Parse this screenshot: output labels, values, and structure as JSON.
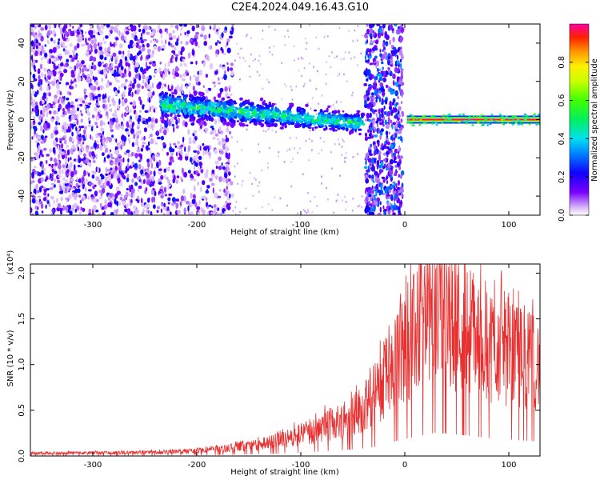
{
  "title": "C2E4.2024.049.16.43.G10",
  "chart_data": [
    {
      "type": "heatmap",
      "xlabel": "Height of straight line (km)",
      "ylabel": "Frequency (Hz)",
      "xlim": [
        -360,
        130
      ],
      "ylim": [
        -50,
        50
      ],
      "xticks": [
        -300,
        -200,
        -100,
        0,
        100
      ],
      "xtick_labels": [
        "-300",
        "-200",
        "-100",
        "0",
        "100"
      ],
      "yticks": [
        -40,
        -20,
        0,
        20,
        40
      ],
      "ytick_labels": [
        "-40",
        "-20",
        "0",
        "20",
        "40"
      ],
      "colorbar": {
        "label": "Normalized spectral amplitude",
        "range": [
          0,
          1
        ],
        "ticks": [
          0.0,
          0.2,
          0.4,
          0.6,
          0.8
        ],
        "tick_labels": [
          "0.0",
          "0.2",
          "0.4",
          "0.6",
          "0.8"
        ],
        "colormap": "rainbow"
      },
      "features": [
        {
          "name": "diffuse-noise",
          "x_range": [
            -360,
            -165
          ],
          "amplitude": 0.2
        },
        {
          "name": "drifting-band",
          "x_range": [
            -235,
            -40
          ],
          "freq_start": 8,
          "freq_end": -2,
          "amplitude": 0.45
        },
        {
          "name": "noise-column",
          "x_range": [
            -38,
            -2
          ],
          "amplitude": 0.3
        },
        {
          "name": "carrier-line",
          "x_range": [
            2,
            130
          ],
          "freq": 0,
          "amplitude": 1.0
        }
      ],
      "grid": false
    },
    {
      "type": "line",
      "xlabel": "Height of straight line (km)",
      "ylabel": "SNR (10 * v/v)",
      "y_multiplier": "(x10⁴)",
      "xlim": [
        -360,
        130
      ],
      "ylim": [
        0,
        21000
      ],
      "xticks": [
        -300,
        -200,
        -100,
        0,
        100
      ],
      "xtick_labels": [
        "-300",
        "-200",
        "-100",
        "0",
        "100"
      ],
      "yticks": [
        0,
        5000,
        10000,
        15000,
        20000
      ],
      "ytick_labels": [
        "0.0",
        "0.5",
        "1.0",
        "1.5",
        "2.0"
      ],
      "series": [
        {
          "color": "#e83030",
          "x": [
            -360,
            -300,
            -250,
            -220,
            -200,
            -180,
            -160,
            -140,
            -120,
            -100,
            -80,
            -60,
            -50,
            -40,
            -30,
            -20,
            -10,
            0,
            10,
            20,
            30,
            40,
            50,
            60,
            70,
            80,
            90,
            100,
            110,
            120,
            130
          ],
          "y": [
            300,
            350,
            400,
            500,
            600,
            750,
            1000,
            1300,
            1800,
            2500,
            3300,
            4200,
            4800,
            5500,
            6500,
            8500,
            10500,
            12500,
            14000,
            15500,
            17000,
            16500,
            15500,
            15000,
            14000,
            13000,
            12500,
            12000,
            11500,
            11000,
            10500
          ]
        }
      ],
      "grid": false
    }
  ]
}
